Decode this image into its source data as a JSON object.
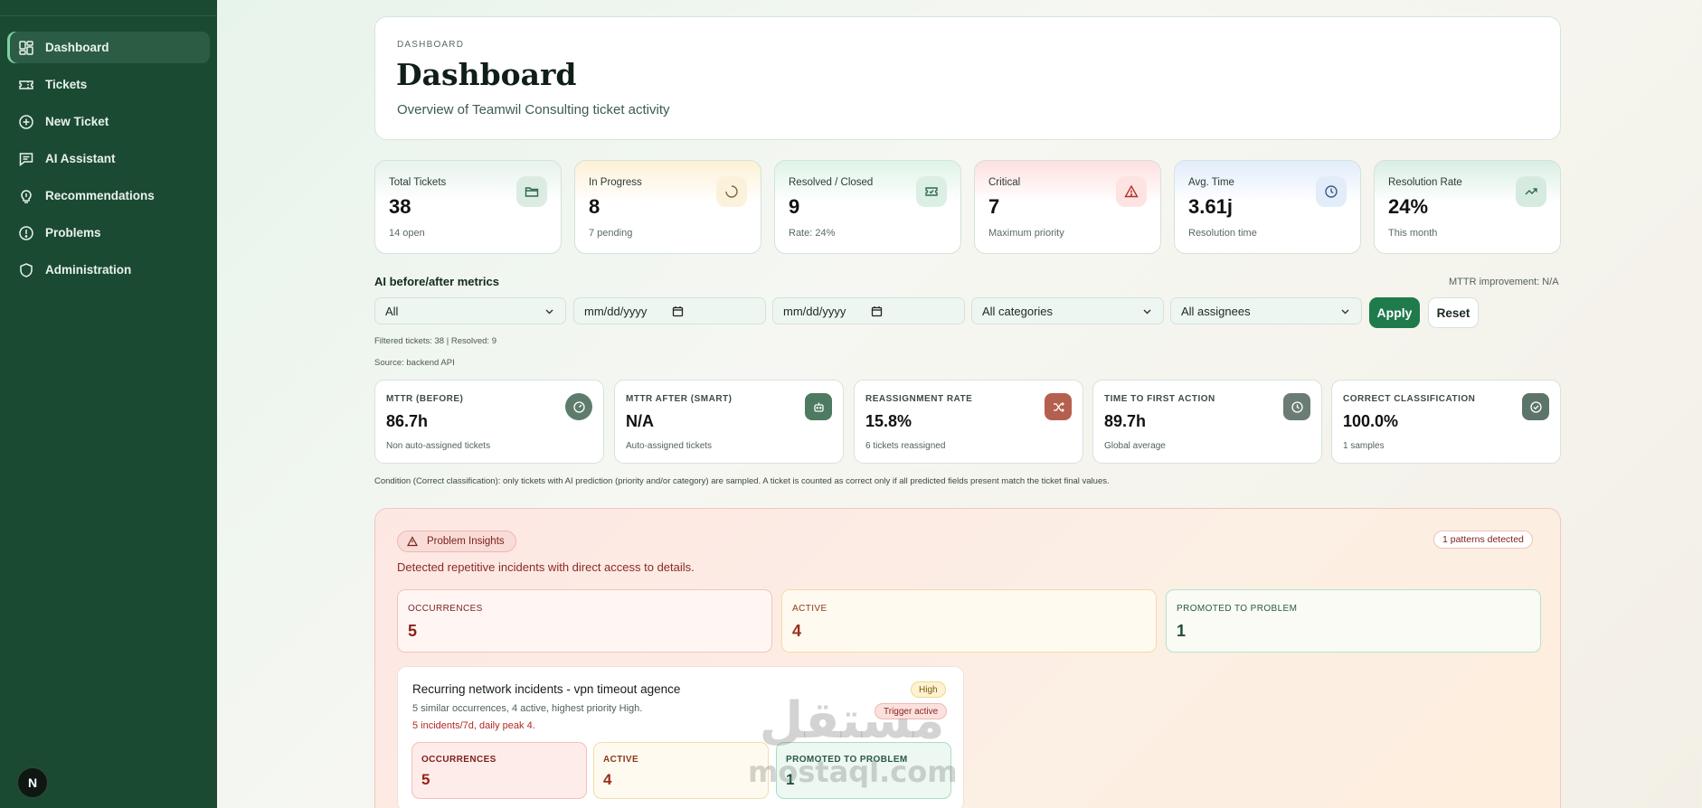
{
  "sidebar": {
    "items": [
      {
        "label": "Dashboard",
        "icon": "dashboard-grid-icon"
      },
      {
        "label": "Tickets",
        "icon": "ticket-icon"
      },
      {
        "label": "New Ticket",
        "icon": "plus-circle-icon"
      },
      {
        "label": "AI Assistant",
        "icon": "chat-icon"
      },
      {
        "label": "Recommendations",
        "icon": "lightbulb-icon"
      },
      {
        "label": "Problems",
        "icon": "alert-circle-icon"
      },
      {
        "label": "Administration",
        "icon": "shield-icon"
      }
    ],
    "avatar_letter": "N"
  },
  "header": {
    "eyebrow": "DASHBOARD",
    "title": "Dashboard",
    "subtitle": "Overview of Teamwil Consulting ticket activity"
  },
  "stats": [
    {
      "label": "Total Tickets",
      "value": "38",
      "sub": "14 open",
      "icon": "folder-icon",
      "tint": "#e6f3ec"
    },
    {
      "label": "In Progress",
      "value": "8",
      "sub": "7 pending",
      "icon": "spinner-icon",
      "tint": "#fdf2d8"
    },
    {
      "label": "Resolved / Closed",
      "value": "9",
      "sub": "Rate: 24%",
      "icon": "ticket-check-icon",
      "tint": "#e0f4ea"
    },
    {
      "label": "Critical",
      "value": "7",
      "sub": "Maximum priority",
      "icon": "warning-triangle-icon",
      "tint": "#fde0e0"
    },
    {
      "label": "Avg. Time",
      "value": "3.61j",
      "sub": "Resolution time",
      "icon": "clock-icon",
      "tint": "#e2ecfb"
    },
    {
      "label": "Resolution Rate",
      "value": "24%",
      "sub": "This month",
      "icon": "trend-up-icon",
      "tint": "#dcefe5"
    }
  ],
  "ai_section": {
    "title": "AI before/after metrics",
    "mttr_improvement": "MTTR improvement: N/A",
    "filters": {
      "scope": "All",
      "date_from": "mm/dd/yyyy",
      "date_to": "mm/dd/yyyy",
      "category": "All categories",
      "assignee": "All assignees"
    },
    "apply_label": "Apply",
    "reset_label": "Reset",
    "filtered_info": "Filtered tickets: 38 | Resolved: 9",
    "source_info": "Source: backend API",
    "metrics": [
      {
        "label": "MTTR (BEFORE)",
        "value": "86.7h",
        "sub": "Non auto-assigned tickets",
        "icon": "gauge-icon",
        "color": "#5e7c6c"
      },
      {
        "label": "MTTR AFTER (SMART)",
        "value": "N/A",
        "sub": "Auto-assigned tickets",
        "icon": "robot-icon",
        "color": "#4e7a61"
      },
      {
        "label": "REASSIGNMENT RATE",
        "value": "15.8%",
        "sub": "6 tickets reassigned",
        "icon": "shuffle-icon",
        "color": "#b5604f"
      },
      {
        "label": "TIME TO FIRST ACTION",
        "value": "89.7h",
        "sub": "Global average",
        "icon": "clock-icon",
        "color": "#6a7c74"
      },
      {
        "label": "CORRECT CLASSIFICATION",
        "value": "100.0%",
        "sub": "1 samples",
        "icon": "check-circle-icon",
        "color": "#5d7569"
      }
    ],
    "condition_note": "Condition (Correct classification): only tickets with AI prediction (priority and/or category) are sampled. A ticket is counted as correct only if all predicted fields present match the ticket final values."
  },
  "insights": {
    "badge": "Problem Insights",
    "patterns_pill": "1 patterns detected",
    "description": "Detected repetitive incidents with direct access to details.",
    "cards": [
      {
        "label": "OCCURRENCES",
        "value": "5"
      },
      {
        "label": "ACTIVE",
        "value": "4"
      },
      {
        "label": "PROMOTED TO PROBLEM",
        "value": "1"
      }
    ],
    "pattern": {
      "title": "Recurring network incidents - vpn timeout agence",
      "summary": "5 similar occurrences, 4 active, highest priority High.",
      "rate": "5 incidents/7d, daily peak 4.",
      "priority_pill": "High",
      "trigger_pill": "Trigger active",
      "cards": [
        {
          "label": "OCCURRENCES",
          "value": "5"
        },
        {
          "label": "ACTIVE",
          "value": "4"
        },
        {
          "label": "PROMOTED TO PROBLEM",
          "value": "1"
        }
      ]
    }
  },
  "watermark": {
    "arabic": "مستقل",
    "latin": "mostaql.com"
  }
}
